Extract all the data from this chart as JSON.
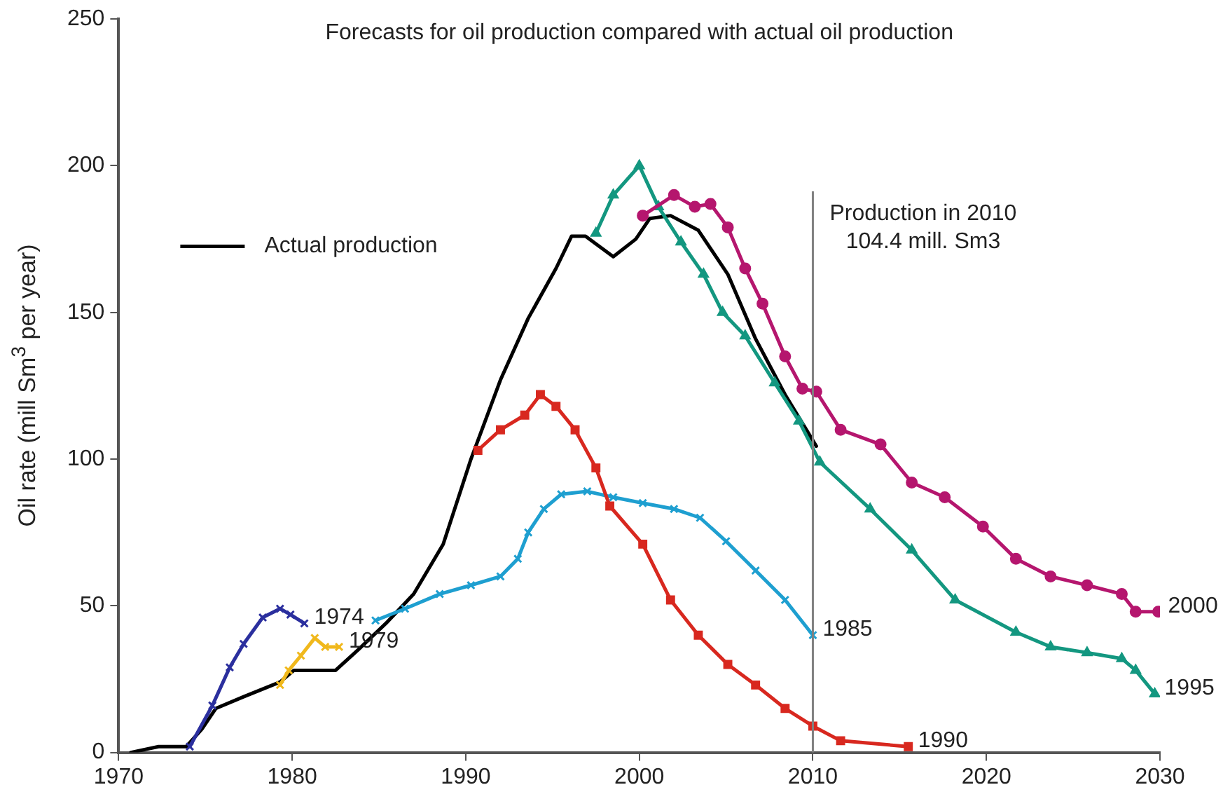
{
  "chart_data": {
    "type": "line",
    "title": "Forecasts for oil production compared with actual oil production",
    "ylabel": "Oil rate (mill Sm$^{3}$ per year)",
    "xlim": [
      1970,
      2030
    ],
    "ylim": [
      0,
      250
    ],
    "xticks": [
      1970,
      1980,
      1990,
      2000,
      2010,
      2020,
      2030
    ],
    "yticks": [
      0,
      50,
      100,
      150,
      200,
      250
    ],
    "grid": false,
    "legend": "top left",
    "line_style": "solid",
    "ref_lines": [
      {
        "axis": "x",
        "value": 2010,
        "label": "Production in 2010\n104.4 mill. Sm3",
        "color": "#808080"
      }
    ],
    "series": [
      {
        "name": "Actual production",
        "color": "#000000",
        "marker": "none",
        "x": [
          1970.7,
          1972.3,
          1973.9,
          1974.8,
          1975.6,
          1977.2,
          1979.3,
          1980.1,
          1982.5,
          1983.8,
          1985.4,
          1987,
          1988.7,
          1990.3,
          1992,
          1993.6,
          1995.2,
          1996.1,
          1996.9,
          1998.5,
          1999.8,
          2000.6,
          2001.8,
          2003.4,
          2005.1,
          2006.7,
          2008.4,
          2010.2
        ],
        "values": [
          0,
          2,
          2,
          8,
          15,
          19,
          24,
          28,
          28,
          35,
          44,
          54,
          71,
          100,
          127,
          148,
          165,
          176,
          176,
          169,
          175,
          182,
          183,
          178,
          163,
          141,
          122,
          104.4
        ]
      },
      {
        "name": "1974",
        "color": "#2b2f9e",
        "marker": "cross",
        "x": [
          1974.1,
          1975.4,
          1976.4,
          1977.2,
          1978.3,
          1979.3,
          1979.9,
          1980.7
        ],
        "values": [
          2,
          16,
          29,
          37,
          46,
          49,
          47,
          44
        ]
      },
      {
        "name": "1979",
        "color": "#f0b81c",
        "marker": "cross",
        "x": [
          1979.3,
          1979.8,
          1980.5,
          1981.3,
          1981.9,
          1982.7
        ],
        "values": [
          23,
          28,
          33,
          39,
          36,
          36
        ]
      },
      {
        "name": "1985",
        "color": "#1e9fd0",
        "marker": "cross",
        "x": [
          1984.8,
          1986.5,
          1988.5,
          1990.3,
          1992,
          1993,
          1993.6,
          1994.5,
          1995.5,
          1997,
          1998.5,
          2000.2,
          2002,
          2003.5,
          2005,
          2006.7,
          2008.4,
          2010
        ],
        "values": [
          45,
          49,
          54,
          57,
          60,
          66,
          75,
          83,
          88,
          89,
          87,
          85,
          83,
          80,
          72,
          62,
          52,
          40
        ]
      },
      {
        "name": "1990",
        "color": "#d8281f",
        "marker": "square",
        "x": [
          1990.7,
          1992,
          1993.4,
          1994.3,
          1995.2,
          1996.3,
          1997.5,
          1998.3,
          2000.2,
          2001.8,
          2003.4,
          2005.1,
          2006.7,
          2008.4,
          2010,
          2011.6,
          2015.5
        ],
        "values": [
          103,
          110,
          115,
          122,
          118,
          110,
          97,
          84,
          71,
          52,
          40,
          30,
          23,
          15,
          9,
          4,
          2
        ]
      },
      {
        "name": "1995",
        "color": "#139780",
        "marker": "triangle",
        "x": [
          1997.5,
          1998.5,
          2000,
          2001.1,
          2002.4,
          2003.7,
          2004.8,
          2006.1,
          2007.8,
          2009.2,
          2010.4,
          2013.3,
          2015.7,
          2018.2,
          2021.7,
          2023.7,
          2025.8,
          2027.8,
          2028.6,
          2029.7
        ],
        "values": [
          177,
          190,
          200,
          186,
          174,
          163,
          150,
          142,
          126,
          113,
          99,
          83,
          69,
          52,
          41,
          36,
          34,
          32,
          28,
          20
        ]
      },
      {
        "name": "2000",
        "color": "#b5166e",
        "marker": "circle",
        "x": [
          2000.2,
          2002,
          2003.2,
          2004.1,
          2005.1,
          2006.1,
          2007.1,
          2008.4,
          2009.4,
          2010.2,
          2011.6,
          2013.9,
          2015.7,
          2017.6,
          2019.8,
          2021.7,
          2023.7,
          2025.8,
          2027.8,
          2028.6,
          2029.9
        ],
        "values": [
          183,
          190,
          186,
          187,
          179,
          165,
          153,
          135,
          124,
          123,
          110,
          105,
          92,
          87,
          77,
          66,
          60,
          57,
          54,
          48,
          48
        ]
      }
    ]
  }
}
